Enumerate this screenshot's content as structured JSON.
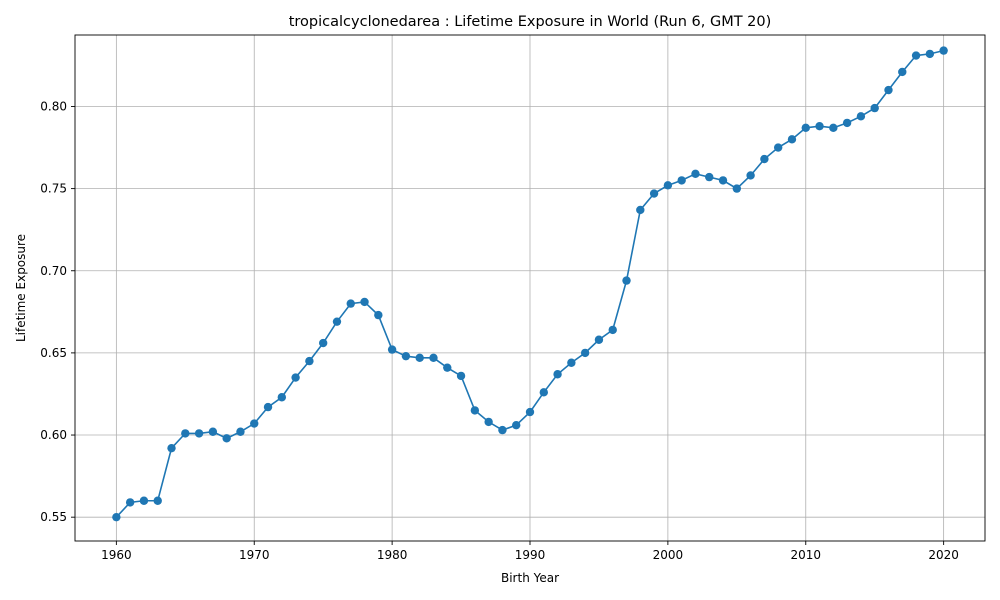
{
  "chart_data": {
    "type": "line",
    "title": "tropicalcyclonedarea : Lifetime Exposure in World (Run 6, GMT 20)",
    "xlabel": "Birth Year",
    "ylabel": "Lifetime Exposure",
    "xlim": [
      1957,
      2023
    ],
    "ylim": [
      0.5355,
      0.8435
    ],
    "xticks": [
      "1960",
      "1970",
      "1980",
      "1990",
      "2000",
      "2010",
      "2020"
    ],
    "yticks": [
      "0.55",
      "0.60",
      "0.65",
      "0.70",
      "0.75",
      "0.80"
    ],
    "grid": true,
    "color": "#1f77b4",
    "series": [
      {
        "x": [
          1960,
          1961,
          1962,
          1963,
          1964,
          1965,
          1966,
          1967,
          1968,
          1969,
          1970,
          1971,
          1972,
          1973,
          1974,
          1975,
          1976,
          1977,
          1978,
          1979,
          1980,
          1981,
          1982,
          1983,
          1984,
          1985,
          1986,
          1987,
          1988,
          1989,
          1990,
          1991,
          1992,
          1993,
          1994,
          1995,
          1996,
          1997,
          1998,
          1999,
          2000,
          2001,
          2002,
          2003,
          2004,
          2005,
          2006,
          2007,
          2008,
          2009,
          2010,
          2011,
          2012,
          2013,
          2014,
          2015,
          2016,
          2017,
          2018,
          2019,
          2020
        ],
        "values": [
          0.55,
          0.559,
          0.56,
          0.56,
          0.592,
          0.601,
          0.601,
          0.602,
          0.598,
          0.602,
          0.607,
          0.617,
          0.623,
          0.635,
          0.645,
          0.656,
          0.669,
          0.68,
          0.681,
          0.673,
          0.652,
          0.648,
          0.647,
          0.647,
          0.641,
          0.636,
          0.615,
          0.608,
          0.603,
          0.606,
          0.614,
          0.626,
          0.637,
          0.644,
          0.65,
          0.658,
          0.664,
          0.694,
          0.737,
          0.747,
          0.752,
          0.755,
          0.759,
          0.757,
          0.755,
          0.75,
          0.758,
          0.768,
          0.775,
          0.78,
          0.787,
          0.788,
          0.787,
          0.79,
          0.794,
          0.799,
          0.81,
          0.821,
          0.831,
          0.832,
          0.834
        ]
      }
    ]
  }
}
